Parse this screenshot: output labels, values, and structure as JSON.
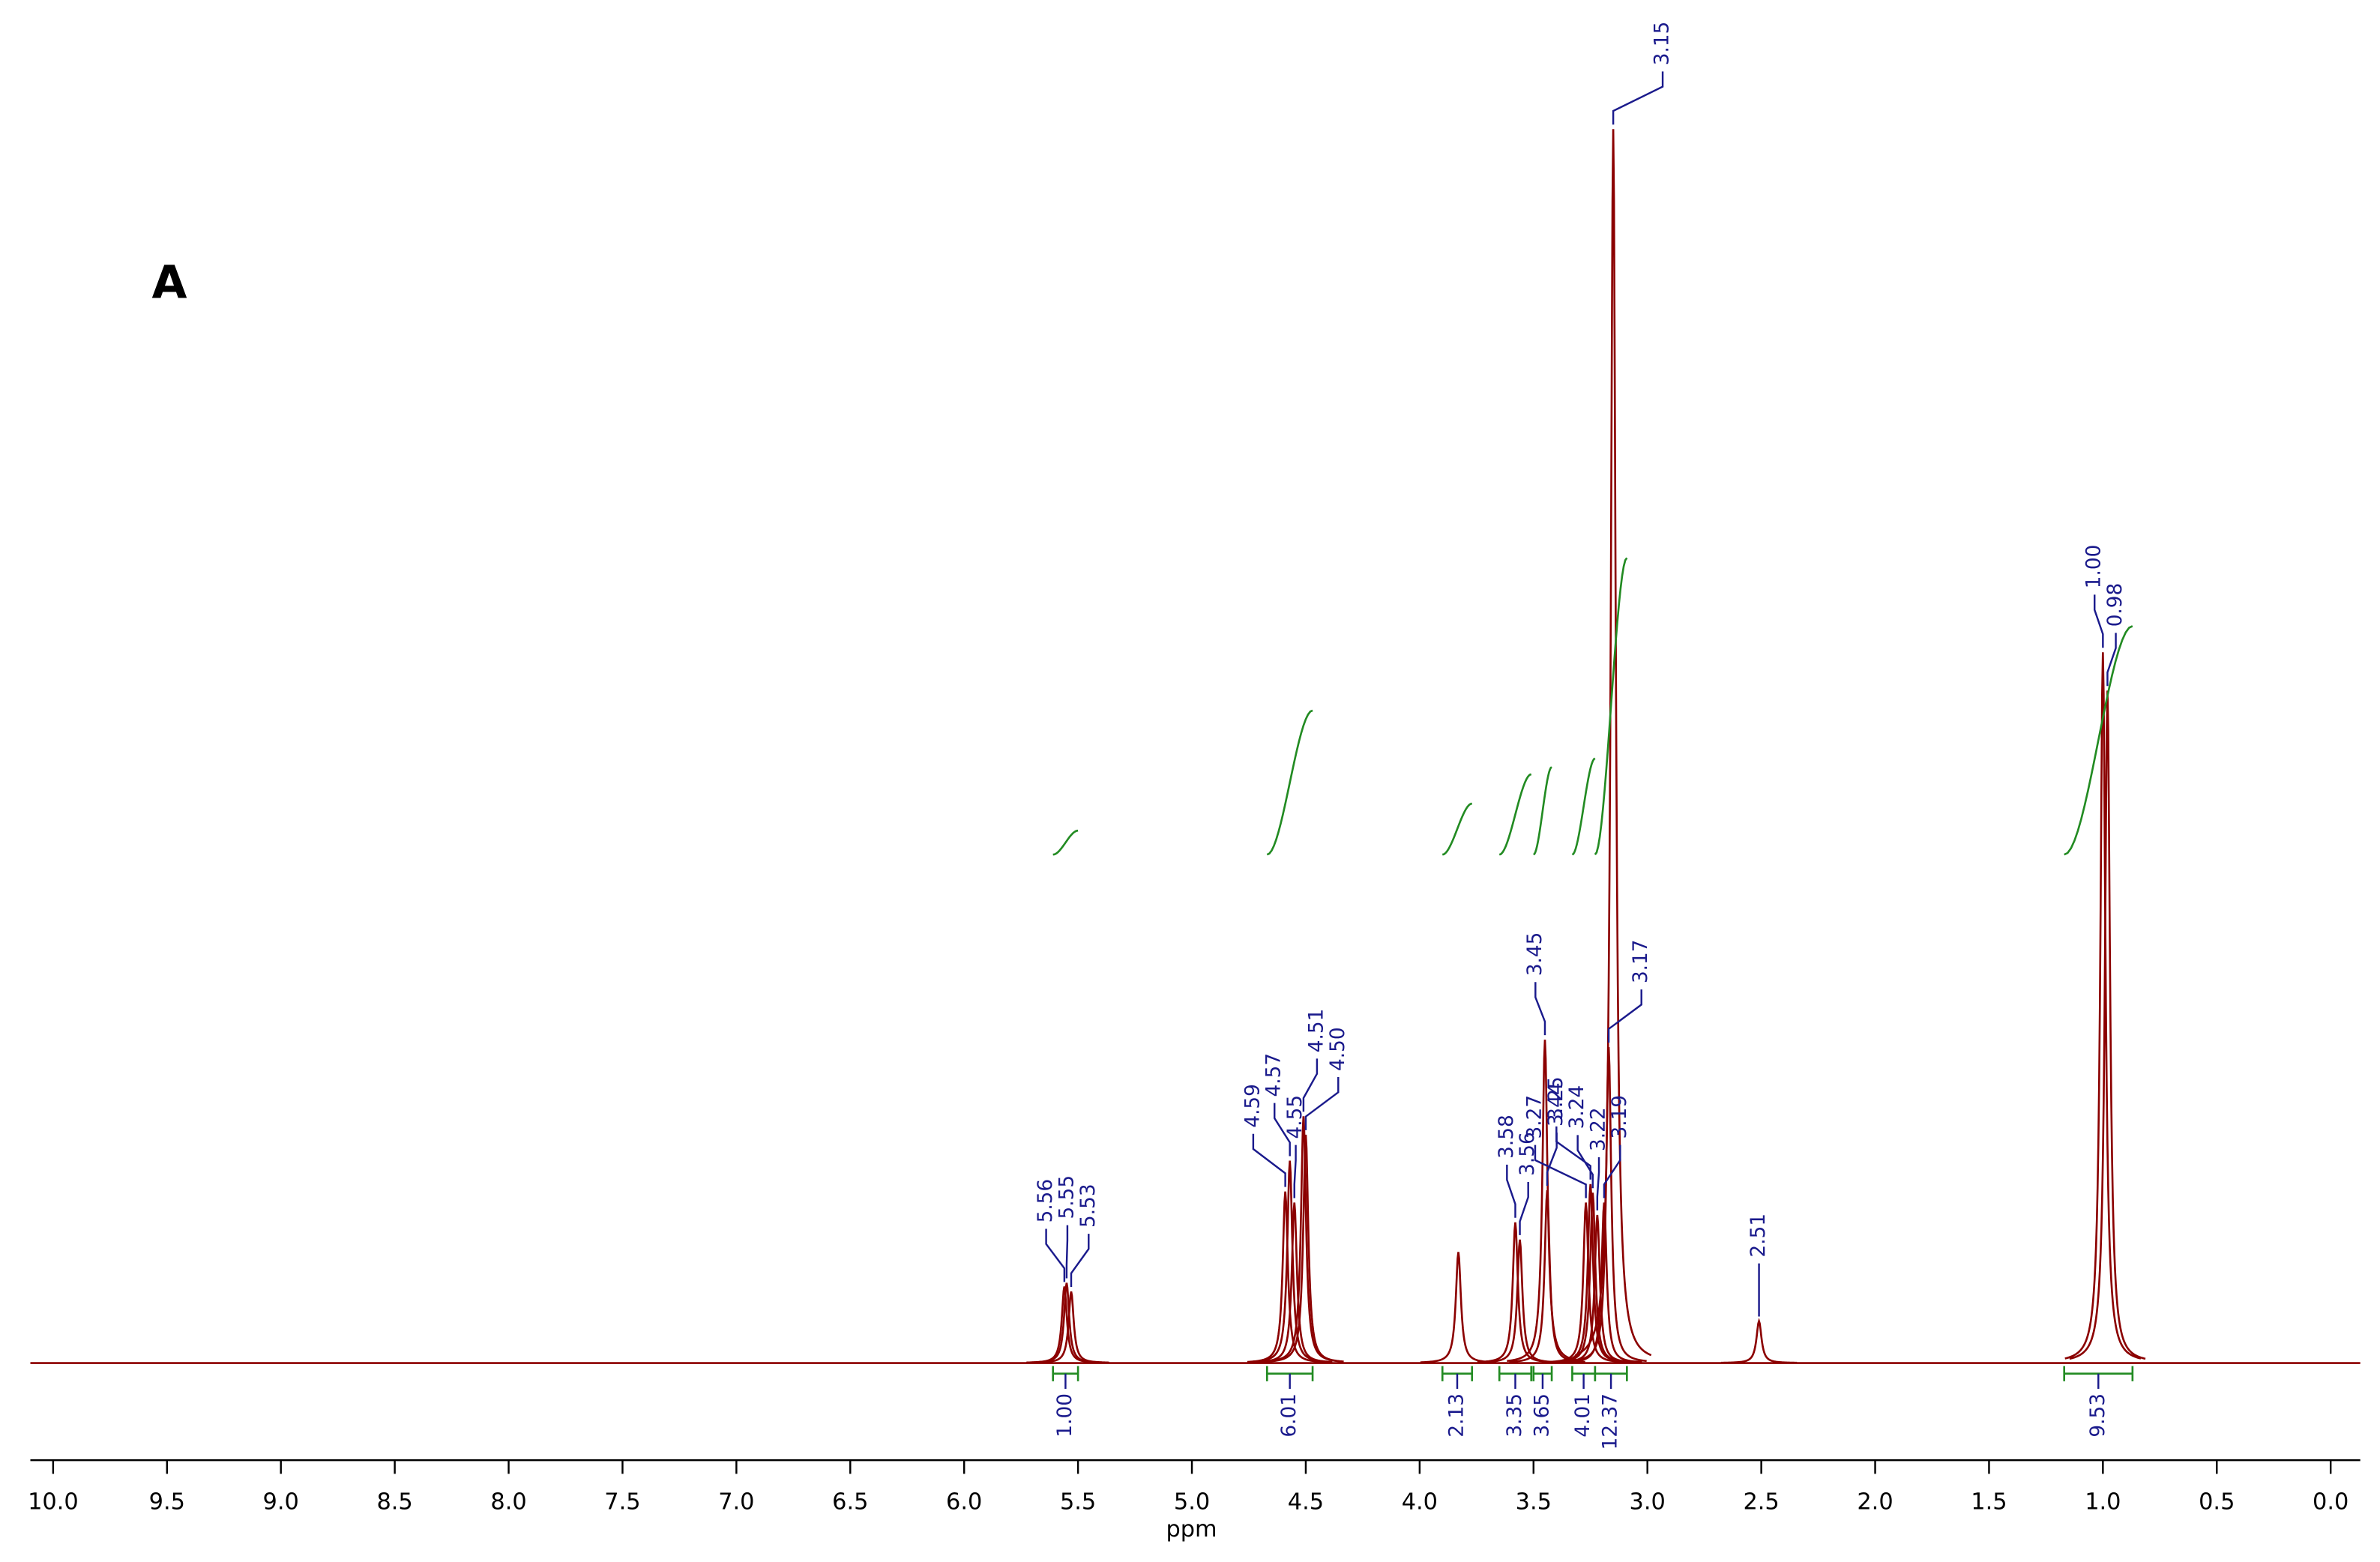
{
  "panel_label": "A",
  "chart_data": {
    "type": "spectrum",
    "xlabel": "ppm",
    "xlim": [
      10.1,
      -0.13
    ],
    "ylim": [
      0,
      100
    ],
    "xticks": [
      {
        "value": 10,
        "label": "10.0"
      },
      9.5,
      {
        "value": 9,
        "label": "9.0"
      },
      8.5,
      {
        "value": 8,
        "label": "8.0"
      },
      7.5,
      {
        "value": 7,
        "label": "7.0"
      },
      6.5,
      {
        "value": 6,
        "label": "6.0"
      },
      5.5,
      {
        "value": 5,
        "label": "5.0"
      },
      4.5,
      {
        "value": 4,
        "label": "4.0"
      },
      3.5,
      {
        "value": 3,
        "label": "3.0"
      },
      2.5,
      {
        "value": 2,
        "label": "2.0"
      },
      1.5,
      {
        "value": 1,
        "label": "1.0"
      },
      0.5,
      {
        "value": 0,
        "label": "0.0"
      }
    ],
    "color": "#8b0000",
    "label_color": "#1a1a8c",
    "peaks": [
      {
        "ppm": 5.56,
        "height": 6.2
      },
      {
        "ppm": 5.55,
        "height": 6.5
      },
      {
        "ppm": 5.53,
        "height": 5.8
      },
      {
        "ppm": 4.59,
        "height": 13.9
      },
      {
        "ppm": 4.57,
        "height": 16.4
      },
      {
        "ppm": 4.55,
        "height": 13.0
      },
      {
        "ppm": 4.51,
        "height": 20.0
      },
      {
        "ppm": {
          "value": 4.5,
          "label": "4.50"
        },
        "height": 18.5
      },
      {
        "ppm": 3.58,
        "height": 11.4
      },
      {
        "ppm": 3.56,
        "height": 10.0
      },
      {
        "ppm": 3.45,
        "height": 26.2
      },
      {
        "ppm": 3.44,
        "height": 14.0
      },
      {
        "ppm": 3.27,
        "height": 13.0
      },
      {
        "ppm": 3.25,
        "height": 14.5
      },
      {
        "ppm": 3.24,
        "height": 13.8
      },
      {
        "ppm": 3.22,
        "height": 12.0
      },
      {
        "ppm": 3.19,
        "height": 13.0
      },
      {
        "ppm": 3.17,
        "height": 25.6
      },
      {
        "ppm": 3.15,
        "height": 100
      },
      {
        "ppm": 2.51,
        "height": 3.4
      },
      {
        "ppm": {
          "value": 1,
          "label": "1.00"
        },
        "height": 57.6
      },
      {
        "ppm": 0.98,
        "height": 54.5
      }
    ],
    "unlabeled_peaks": [
      {
        "ppm": 3.83,
        "height": 9.0
      }
    ],
    "integrals": {
      "color": "#228b22",
      "items": [
        {
          "value": {
            "value": 1,
            "label": "1.00"
          },
          "from": 5.61,
          "to": 5.5
        },
        {
          "value": 6.01,
          "from": 4.67,
          "to": 4.47
        },
        {
          "value": 2.13,
          "from": 3.9,
          "to": 3.77
        },
        {
          "value": 3.35,
          "from": 3.65,
          "to": 3.51
        },
        {
          "value": 3.65,
          "from": 3.5,
          "to": 3.42
        },
        {
          "value": 4.01,
          "from": 3.33,
          "to": 3.23
        },
        {
          "value": 12.37,
          "from": 3.23,
          "to": 3.09
        },
        {
          "value": 9.53,
          "from": 1.17,
          "to": 0.87
        }
      ]
    }
  }
}
